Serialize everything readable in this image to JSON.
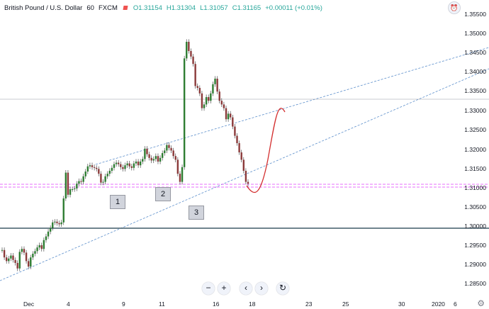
{
  "header": {
    "symbol": "British Pound / U.S. Dollar",
    "interval": "60",
    "exchange": "FXCM",
    "open": "O1.31154",
    "high": "H1.31304",
    "low": "L1.31057",
    "close": "C1.31165",
    "change": "+0.00011 (+0.01%)"
  },
  "price_axis": [
    "1.35500",
    "1.35000",
    "1.34500",
    "1.34000",
    "1.33500",
    "1.33000",
    "1.32500",
    "1.32000",
    "1.31500",
    "1.31000",
    "1.30500",
    "1.30000",
    "1.29500",
    "1.29000",
    "1.28500"
  ],
  "time_axis": [
    "Dec",
    "4",
    "9",
    "11",
    "16",
    "18",
    "23",
    "25",
    "30",
    "2020",
    "6"
  ],
  "markers": [
    "1",
    "2",
    "3"
  ],
  "nav": {
    "zoom_out": "−",
    "zoom_in": "+",
    "scroll_left": "‹",
    "scroll_right": "›",
    "reset": "↻"
  },
  "icons": {
    "alert": "alert-icon",
    "settings": "gear-icon"
  },
  "colors": {
    "bull": "#26a69a",
    "bear": "#ef5350",
    "candle_body_bull": "#2e7d32",
    "candle_body_bear": "#8b3a3a",
    "trendline": "#5b8ecb",
    "support": "#1b3a4b",
    "projection": "#d32f2f",
    "pink_band": "#e040fb"
  },
  "chart_data": {
    "type": "candlestick",
    "title": "",
    "xlabel": "",
    "ylabel": "",
    "ylim": [
      1.2825,
      1.3575
    ],
    "series": [
      {
        "close": [
          1.2935,
          1.2915,
          1.2905,
          1.2912,
          1.292,
          1.2908,
          1.29,
          1.2885,
          1.293,
          1.2938,
          1.2928,
          1.2905,
          1.289,
          1.2915,
          1.2925,
          1.2932,
          1.2942,
          1.2948,
          1.2938,
          1.2962,
          1.2972,
          1.2985,
          1.2995,
          1.301,
          1.3012,
          1.3008,
          1.3005,
          1.301,
          1.3075,
          1.3145,
          1.3085,
          1.31,
          1.31,
          1.3102,
          1.3115,
          1.3122,
          1.312,
          1.3135,
          1.3148,
          1.3162,
          1.3165,
          1.316,
          1.3158,
          1.3155,
          1.3142,
          1.3118,
          1.312,
          1.3135,
          1.3142,
          1.315,
          1.3158,
          1.3168,
          1.3172,
          1.3168,
          1.316,
          1.3155,
          1.3165,
          1.317,
          1.3162,
          1.3158,
          1.317,
          1.3175,
          1.3165,
          1.3175,
          1.3182,
          1.321,
          1.3195,
          1.3185,
          1.3178,
          1.3182,
          1.319,
          1.3175,
          1.3185,
          1.3198,
          1.3205,
          1.322,
          1.3212,
          1.3205,
          1.319,
          1.318,
          1.3142,
          1.312,
          1.316,
          1.3455,
          1.35,
          1.3475,
          1.346,
          1.344,
          1.338,
          1.3375,
          1.336,
          1.332,
          1.333,
          1.335,
          1.334,
          1.336,
          1.3385,
          1.34,
          1.3365,
          1.334,
          1.333,
          1.332,
          1.329,
          1.3305,
          1.3295,
          1.327,
          1.3245,
          1.3225,
          1.32,
          1.318,
          1.315,
          1.312,
          1.3115
        ]
      }
    ],
    "support_level": 1.3,
    "resistance_band": [
      1.3098,
      1.311
    ],
    "last_price": 1.31165
  }
}
